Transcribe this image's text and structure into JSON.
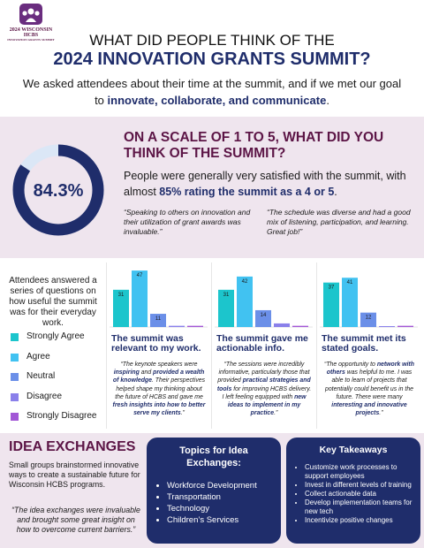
{
  "logo": {
    "line1": "2024 WISCONSIN HCBS",
    "line2": "INNOVATION GRANTS SUMMIT"
  },
  "header": {
    "title_line1": "WHAT DID PEOPLE THINK OF THE",
    "title_line2": "2024 INNOVATION GRANTS SUMMIT?",
    "intro": [
      {
        "text": "We asked attendees about their time at the summit, and if we met our goal to "
      },
      {
        "text": "innovate, collaborate, and communicate",
        "bold": true
      },
      {
        "text": "."
      }
    ]
  },
  "satisfaction": {
    "question": "ON A SCALE OF 1 TO 5, WHAT DID YOU THINK OF THE SUMMIT?",
    "donut": {
      "value": 84.3,
      "label": "84.3%",
      "range": [
        0,
        100
      ],
      "color": "#1f2d6b",
      "track_color": "#dbe7f6"
    },
    "summary": [
      {
        "text": "People were generally very satisfied with the summit, with almost "
      },
      {
        "text": "85% rating the summit as a 4 or 5",
        "bold": true
      },
      {
        "text": "."
      }
    ],
    "quotes": [
      "“Speaking to others on innovation and their utilization of grant awards was invaluable.”",
      "“The schedule was diverse and had a good mix of listening, participation, and learning. Great job!”"
    ]
  },
  "usefulness": {
    "intro": "Attendees answered a series of questions on how useful the summit was for their everyday work.",
    "legend": [
      {
        "name": "Strongly Agree",
        "color": "#1cc5cc"
      },
      {
        "name": "Agree",
        "color": "#41c2f1"
      },
      {
        "name": "Neutral",
        "color": "#6b8fe8"
      },
      {
        "name": "Disagree",
        "color": "#8a80ea"
      },
      {
        "name": "Strongly Disagree",
        "color": "#a257d6"
      }
    ],
    "ylim": [
      0,
      50
    ],
    "charts": [
      {
        "type": "bar",
        "values": [
          31,
          47,
          11,
          1,
          1
        ],
        "title": "The summit was relevant to my work.",
        "quote": [
          {
            "text": "“The keynote speakers were "
          },
          {
            "text": "inspiring",
            "bold": true
          },
          {
            "text": " and "
          },
          {
            "text": "provided a wealth of knowledge",
            "bold": true
          },
          {
            "text": ". Their perspectives helped shape my thinking about the future of HCBS and gave me "
          },
          {
            "text": "fresh insights into how to better serve my clients",
            "bold": true
          },
          {
            "text": ".”"
          }
        ]
      },
      {
        "type": "bar",
        "values": [
          31,
          42,
          14,
          3,
          1
        ],
        "title": "The summit gave me actionable info.",
        "quote": [
          {
            "text": "“The sessions were incredibly informative, particularly those that provided "
          },
          {
            "text": "practical strategies and tools",
            "bold": true
          },
          {
            "text": " for improving HCBS delivery. I left feeling equipped with "
          },
          {
            "text": "new ideas to implement in my practice",
            "bold": true
          },
          {
            "text": ".”"
          }
        ]
      },
      {
        "type": "bar",
        "values": [
          37,
          41,
          12,
          0,
          1
        ],
        "title": "The summit met its stated goals.",
        "quote": [
          {
            "text": "“The opportunity to "
          },
          {
            "text": "network with others",
            "bold": true
          },
          {
            "text": " was helpful to me. I was able to learn of projects that potentially could benefit us in the future. There were many "
          },
          {
            "text": "interesting and innovative projects",
            "bold": true
          },
          {
            "text": ".”"
          }
        ]
      }
    ]
  },
  "idea_exchanges": {
    "title": "IDEA EXCHANGES",
    "description": "Small groups brainstormed innovative ways to create a sustainable future for Wisconsin HCBS programs.",
    "quote": "“The idea exchanges were invaluable and brought some great insight on how to overcome current barriers.”",
    "topics": {
      "title": "Topics for Idea Exchanges:",
      "items": [
        "Workforce Development",
        "Transportation",
        "Technology",
        "Children’s Services"
      ]
    },
    "takeaways": {
      "title": "Key Takeaways",
      "items": [
        "Customize work processes to support employees",
        "Invest in different levels of training",
        "Collect actionable data",
        "Develop implementation teams for new tech",
        "Incentivize positive changes"
      ]
    }
  }
}
